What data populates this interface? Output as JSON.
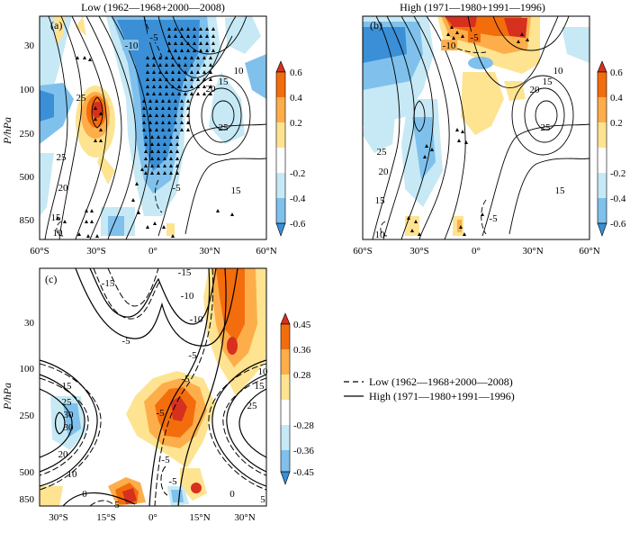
{
  "chart_data": [
    {
      "type": "contour",
      "panel_label": "(a)",
      "title": "Low (1962—1968+2000—2008)",
      "ylabel": "P/hPa",
      "xlabel": "",
      "x_ticks": [
        "60°S",
        "30°S",
        "0°",
        "30°N",
        "60°N"
      ],
      "y_ticks": [
        "30",
        "100",
        "250",
        "500",
        "850"
      ],
      "colorbar": {
        "ticks": [
          "0.6",
          "0.4",
          "0.2",
          "-0.2",
          "-0.4",
          "-0.6"
        ],
        "colors": [
          "#d7301f",
          "#f46d0c",
          "#fdae4b",
          "#fee391",
          "#ffffff",
          "#c6e9f5",
          "#7fc1ec",
          "#3a8fd6"
        ]
      },
      "contour_labels": [
        "-5",
        "-10",
        "10",
        "15",
        "20",
        "25",
        "25",
        "25",
        "20",
        "15",
        "10",
        "15",
        "-5"
      ]
    },
    {
      "type": "contour",
      "panel_label": "(b)",
      "title": "High (1971—1980+1991—1996)",
      "ylabel": "",
      "x_ticks": [
        "60°S",
        "30°S",
        "0°",
        "30°N",
        "60°N"
      ],
      "y_ticks": [],
      "colorbar": {
        "ticks": [
          "0.6",
          "0.4",
          "0.2",
          "-0.2",
          "-0.4",
          "-0.6"
        ],
        "colors": [
          "#d7301f",
          "#f46d0c",
          "#fdae4b",
          "#fee391",
          "#ffffff",
          "#c6e9f5",
          "#7fc1ec",
          "#3a8fd6"
        ]
      },
      "contour_labels": [
        "-5",
        "-10",
        "10",
        "15",
        "20",
        "25",
        "25",
        "20",
        "15",
        "10",
        "15",
        "-5"
      ]
    },
    {
      "type": "contour",
      "panel_label": "(c)",
      "title": "",
      "ylabel": "P/hPa",
      "x_ticks": [
        "30°S",
        "15°S",
        "0°",
        "15°N",
        "30°N"
      ],
      "y_ticks": [
        "30",
        "100",
        "250",
        "500",
        "850"
      ],
      "colorbar": {
        "ticks": [
          "0.45",
          "0.36",
          "0.28",
          "-0.28",
          "-0.36",
          "-0.45"
        ],
        "colors": [
          "#d7301f",
          "#f46d0c",
          "#fdae4b",
          "#fee391",
          "#ffffff",
          "#c6e9f5",
          "#7fc1ec",
          "#3a8fd6"
        ]
      },
      "contour_labels": [
        "-15",
        "-15",
        "-10",
        "-10",
        "-5",
        "-5",
        "10",
        "15",
        "-5",
        "15",
        "25",
        "25",
        "30",
        "30",
        "20",
        "10",
        "-5",
        "-5",
        "0",
        "0",
        "5",
        "5",
        "-5"
      ],
      "legend": {
        "dashed": "Low (1962—1968+2000—2008)",
        "solid": "High (1971—1980+1991—1996)"
      }
    }
  ]
}
